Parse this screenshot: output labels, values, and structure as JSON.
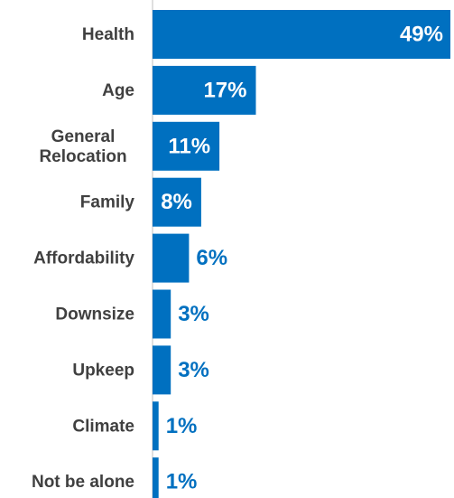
{
  "chart_data": {
    "type": "bar",
    "orientation": "horizontal",
    "categories": [
      [
        "Health"
      ],
      [
        "Age"
      ],
      [
        "General",
        "Relocation"
      ],
      [
        "Family"
      ],
      [
        "Affordability"
      ],
      [
        "Downsize"
      ],
      [
        "Upkeep"
      ],
      [
        "Climate"
      ],
      [
        "Not be alone"
      ]
    ],
    "values": [
      49,
      17,
      11,
      8,
      6,
      3,
      3,
      1,
      1
    ],
    "value_labels": [
      "49%",
      "17%",
      "11%",
      "8%",
      "6%",
      "3%",
      "3%",
      "1%",
      "1%"
    ],
    "unit": "%",
    "xlim": [
      0,
      49
    ],
    "grid": false,
    "legend": "none",
    "colors": {
      "bar": "#0070C0",
      "label_inside": "#ffffff",
      "label_outside": "#0070C0",
      "category_text": "#404040",
      "axis_line": "#bfbfbf"
    }
  }
}
